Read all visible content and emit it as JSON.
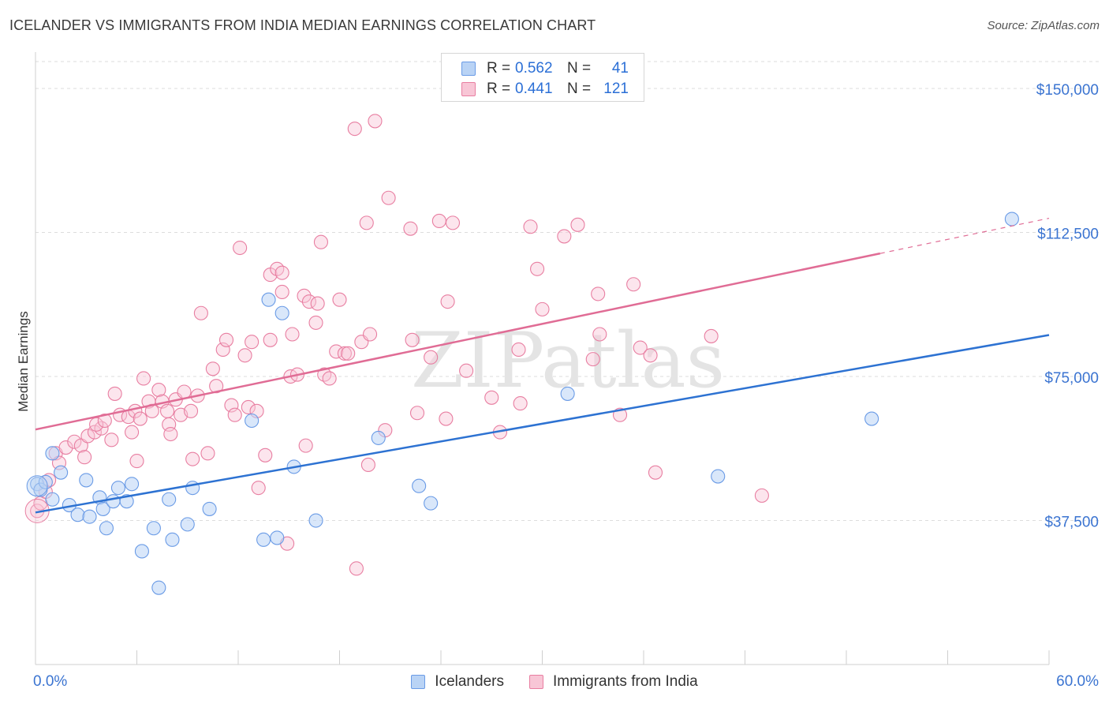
{
  "chart_data": {
    "type": "scatter",
    "title": "ICELANDER VS IMMIGRANTS FROM INDIA MEDIAN EARNINGS CORRELATION CHART",
    "source": "Source: ZipAtlas.com",
    "xlabel": "",
    "ylabel": "Median Earnings",
    "xlim": [
      0,
      60
    ],
    "ylim": [
      0,
      157000
    ],
    "x_tick_labels": [
      "0.0%",
      "60.0%"
    ],
    "y_ticks": [
      {
        "value": 37500,
        "label": "$37,500"
      },
      {
        "value": 75000,
        "label": "$75,000"
      },
      {
        "value": 112500,
        "label": "$112,500"
      },
      {
        "value": 150000,
        "label": "$150,000"
      }
    ],
    "watermark": "ZIPatlas",
    "legend": {
      "r_label": "R =",
      "n_label": "N =",
      "entries": [
        {
          "name": "Icelanders",
          "r": "0.562",
          "n": "41",
          "color": "#6a9be6",
          "fill": "#b9d3f5"
        },
        {
          "name": "Immigrants from India",
          "r": "0.441",
          "n": "121",
          "color": "#e87ea1",
          "fill": "#f8c6d6"
        }
      ]
    },
    "series": [
      {
        "name": "Icelanders",
        "color": "#6a9be6",
        "trend": {
          "x0": 0,
          "y0": 39600,
          "x1": 60,
          "y1": 85800,
          "solid_until": 60
        },
        "points": [
          [
            0.1,
            47000
          ],
          [
            0.3,
            45500
          ],
          [
            0.6,
            47500
          ],
          [
            1.0,
            55000
          ],
          [
            1.5,
            50000
          ],
          [
            1.0,
            43000
          ],
          [
            2.0,
            41500
          ],
          [
            2.5,
            39000
          ],
          [
            3.0,
            48000
          ],
          [
            3.2,
            38500
          ],
          [
            3.8,
            43500
          ],
          [
            4.0,
            40500
          ],
          [
            4.2,
            35500
          ],
          [
            4.6,
            42500
          ],
          [
            4.9,
            46000
          ],
          [
            5.4,
            42500
          ],
          [
            5.7,
            47000
          ],
          [
            6.3,
            29500
          ],
          [
            7.0,
            35500
          ],
          [
            7.3,
            20000
          ],
          [
            7.9,
            43000
          ],
          [
            8.1,
            32500
          ],
          [
            9.0,
            36500
          ],
          [
            9.3,
            46000
          ],
          [
            10.3,
            40500
          ],
          [
            12.8,
            63500
          ],
          [
            13.5,
            32500
          ],
          [
            13.8,
            95000
          ],
          [
            14.3,
            33000
          ],
          [
            14.6,
            91500
          ],
          [
            15.3,
            51500
          ],
          [
            16.6,
            37500
          ],
          [
            20.3,
            59000
          ],
          [
            22.7,
            46500
          ],
          [
            23.4,
            42000
          ],
          [
            31.5,
            70500
          ],
          [
            40.4,
            49000
          ],
          [
            49.5,
            64000
          ],
          [
            57.8,
            116000
          ]
        ]
      },
      {
        "name": "Immigrants from India",
        "color": "#e87ea1",
        "trend": {
          "x0": 0,
          "y0": 61200,
          "x1": 60,
          "y1": 116200,
          "solid_until": 50
        },
        "points": [
          [
            0.1,
            40000
          ],
          [
            0.3,
            42000
          ],
          [
            0.6,
            45000
          ],
          [
            0.8,
            48000
          ],
          [
            1.2,
            55000
          ],
          [
            1.4,
            52500
          ],
          [
            1.8,
            56500
          ],
          [
            2.3,
            58000
          ],
          [
            2.7,
            57000
          ],
          [
            2.9,
            54000
          ],
          [
            3.1,
            59500
          ],
          [
            3.5,
            60500
          ],
          [
            3.9,
            61500
          ],
          [
            3.6,
            62500
          ],
          [
            4.1,
            63500
          ],
          [
            4.5,
            58500
          ],
          [
            4.7,
            70500
          ],
          [
            5.0,
            65000
          ],
          [
            5.5,
            64500
          ],
          [
            5.7,
            60500
          ],
          [
            5.9,
            66000
          ],
          [
            6.0,
            53000
          ],
          [
            6.2,
            64000
          ],
          [
            6.4,
            74500
          ],
          [
            6.7,
            68500
          ],
          [
            6.9,
            66000
          ],
          [
            7.3,
            71500
          ],
          [
            7.5,
            68500
          ],
          [
            7.8,
            66000
          ],
          [
            7.9,
            62500
          ],
          [
            8.0,
            60000
          ],
          [
            8.3,
            69000
          ],
          [
            8.6,
            65000
          ],
          [
            8.8,
            71000
          ],
          [
            9.2,
            66000
          ],
          [
            9.3,
            53500
          ],
          [
            9.6,
            70000
          ],
          [
            9.8,
            91500
          ],
          [
            10.2,
            55000
          ],
          [
            10.5,
            77000
          ],
          [
            10.7,
            72500
          ],
          [
            11.1,
            82000
          ],
          [
            11.3,
            84500
          ],
          [
            11.6,
            67500
          ],
          [
            11.8,
            65000
          ],
          [
            12.1,
            108500
          ],
          [
            12.4,
            80500
          ],
          [
            12.6,
            67000
          ],
          [
            12.8,
            84000
          ],
          [
            13.1,
            66000
          ],
          [
            13.2,
            46000
          ],
          [
            13.6,
            54500
          ],
          [
            13.9,
            101500
          ],
          [
            13.9,
            84500
          ],
          [
            14.3,
            103000
          ],
          [
            14.6,
            102000
          ],
          [
            14.6,
            97000
          ],
          [
            14.9,
            31500
          ],
          [
            15.1,
            75000
          ],
          [
            15.2,
            86000
          ],
          [
            15.5,
            75500
          ],
          [
            15.9,
            96000
          ],
          [
            16.0,
            57000
          ],
          [
            16.2,
            94500
          ],
          [
            16.6,
            89000
          ],
          [
            16.7,
            94000
          ],
          [
            16.9,
            110000
          ],
          [
            17.1,
            75500
          ],
          [
            17.4,
            74500
          ],
          [
            17.8,
            81500
          ],
          [
            18.0,
            95000
          ],
          [
            18.3,
            81000
          ],
          [
            18.5,
            81000
          ],
          [
            18.9,
            139500
          ],
          [
            19.0,
            25000
          ],
          [
            19.3,
            84000
          ],
          [
            19.6,
            115000
          ],
          [
            19.7,
            52000
          ],
          [
            19.8,
            86000
          ],
          [
            20.1,
            141500
          ],
          [
            20.7,
            61000
          ],
          [
            20.9,
            121500
          ],
          [
            22.2,
            113500
          ],
          [
            22.3,
            84500
          ],
          [
            22.6,
            65500
          ],
          [
            23.4,
            80000
          ],
          [
            23.9,
            115500
          ],
          [
            24.3,
            64000
          ],
          [
            24.4,
            94500
          ],
          [
            24.7,
            115000
          ],
          [
            25.5,
            76500
          ],
          [
            27.0,
            69500
          ],
          [
            27.5,
            60500
          ],
          [
            28.6,
            82000
          ],
          [
            28.7,
            68000
          ],
          [
            29.3,
            114000
          ],
          [
            29.7,
            103000
          ],
          [
            30.0,
            92500
          ],
          [
            31.3,
            111500
          ],
          [
            32.1,
            114500
          ],
          [
            33.0,
            79500
          ],
          [
            33.3,
            96500
          ],
          [
            33.4,
            86000
          ],
          [
            34.6,
            65000
          ],
          [
            35.4,
            99000
          ],
          [
            35.8,
            82500
          ],
          [
            36.4,
            80500
          ],
          [
            36.7,
            50000
          ],
          [
            40.0,
            85500
          ],
          [
            43.0,
            44000
          ]
        ]
      }
    ]
  }
}
